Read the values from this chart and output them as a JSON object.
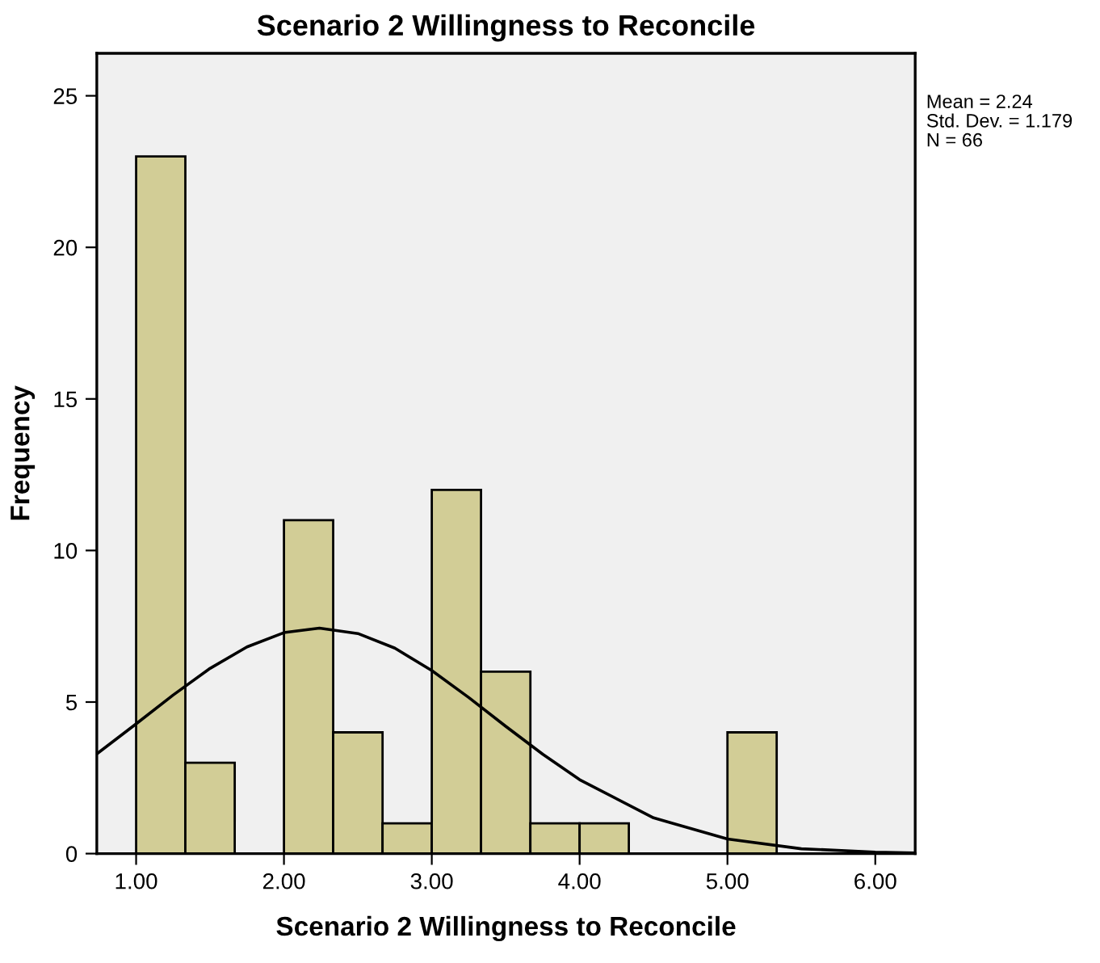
{
  "chart_data": {
    "type": "histogram",
    "title": "Scenario 2 Willingness to Reconcile",
    "xlabel": "Scenario 2 Willingness to Reconcile",
    "ylabel": "Frequency",
    "bins": [
      1.0,
      1.333,
      1.667,
      2.0,
      2.333,
      2.667,
      3.0,
      3.333,
      3.667,
      4.0,
      4.333,
      4.667,
      5.0,
      5.333
    ],
    "values": [
      23,
      3,
      0,
      11,
      4,
      1,
      12,
      6,
      1,
      1,
      0,
      0,
      4
    ],
    "color": "#d2cd96",
    "series": [
      {
        "type": "line",
        "color": "#000000",
        "x": [
          0.734,
          1.0,
          1.25,
          1.5,
          1.75,
          2.0,
          2.24,
          2.5,
          2.75,
          3.0,
          3.25,
          3.5,
          3.75,
          4.0,
          4.5,
          5.0,
          5.5,
          6.0,
          6.27
        ],
        "values": [
          3.29,
          4.28,
          5.23,
          6.11,
          6.82,
          7.29,
          7.44,
          7.26,
          6.78,
          6.04,
          5.15,
          4.2,
          3.28,
          2.44,
          1.18,
          0.48,
          0.16,
          0.05,
          0.02
        ]
      }
    ],
    "xlim": [
      0.734,
      6.27
    ],
    "ylim": [
      0,
      26.4
    ],
    "xticks": [
      {
        "value": 1,
        "label": "1.00"
      },
      {
        "value": 2,
        "label": "2.00"
      },
      {
        "value": 3,
        "label": "3.00"
      },
      {
        "value": 4,
        "label": "4.00"
      },
      {
        "value": 5,
        "label": "5.00"
      },
      {
        "value": 6,
        "label": "6.00"
      }
    ],
    "yticks": [
      0,
      5,
      10,
      15,
      20,
      25
    ],
    "grid": false,
    "annotations": [
      "Mean = 2.24",
      "Std. Dev. = 1.179",
      "N = 66"
    ]
  }
}
